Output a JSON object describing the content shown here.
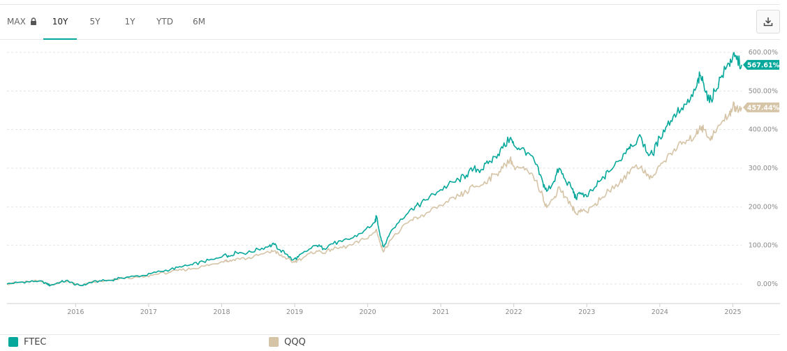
{
  "toolbar": {
    "ranges": [
      {
        "label": "MAX",
        "locked": true,
        "active": false
      },
      {
        "label": "10Y",
        "locked": false,
        "active": true
      },
      {
        "label": "5Y",
        "locked": false,
        "active": false
      },
      {
        "label": "1Y",
        "locked": false,
        "active": false
      },
      {
        "label": "YTD",
        "locked": false,
        "active": false
      },
      {
        "label": "6M",
        "locked": false,
        "active": false
      }
    ],
    "lock_icon": "lock-icon",
    "download_icon": "download-icon"
  },
  "chart_data": {
    "type": "line",
    "x_ticks": [
      "2016",
      "2017",
      "2018",
      "2019",
      "2020",
      "2021",
      "2022",
      "2023",
      "2024",
      "2025"
    ],
    "y_ticks": [
      "0.00%",
      "100.00%",
      "200.00%",
      "300.00%",
      "400.00%",
      "500.00%",
      "600.00%"
    ],
    "ylim": [
      -50,
      600
    ],
    "xlim": [
      2015.06,
      2025.12
    ],
    "grid": true,
    "legend_position": "bottom",
    "series": [
      {
        "name": "FTEC",
        "color": "#05a89b",
        "last_label": "567.61%",
        "points": [
          [
            2015.06,
            0
          ],
          [
            2015.2,
            4
          ],
          [
            2015.35,
            6
          ],
          [
            2015.5,
            8
          ],
          [
            2015.6,
            2
          ],
          [
            2015.65,
            -4
          ],
          [
            2015.8,
            6
          ],
          [
            2015.9,
            8
          ],
          [
            2016.0,
            -2
          ],
          [
            2016.1,
            -4
          ],
          [
            2016.2,
            4
          ],
          [
            2016.35,
            8
          ],
          [
            2016.5,
            10
          ],
          [
            2016.6,
            16
          ],
          [
            2016.8,
            20
          ],
          [
            2016.95,
            22
          ],
          [
            2017.1,
            30
          ],
          [
            2017.3,
            38
          ],
          [
            2017.45,
            44
          ],
          [
            2017.6,
            50
          ],
          [
            2017.75,
            58
          ],
          [
            2017.9,
            64
          ],
          [
            2018.05,
            78
          ],
          [
            2018.1,
            72
          ],
          [
            2018.2,
            82
          ],
          [
            2018.35,
            80
          ],
          [
            2018.5,
            90
          ],
          [
            2018.65,
            98
          ],
          [
            2018.72,
            102
          ],
          [
            2018.8,
            88
          ],
          [
            2018.9,
            76
          ],
          [
            2018.97,
            62
          ],
          [
            2019.05,
            70
          ],
          [
            2019.15,
            84
          ],
          [
            2019.3,
            100
          ],
          [
            2019.4,
            92
          ],
          [
            2019.5,
            104
          ],
          [
            2019.65,
            110
          ],
          [
            2019.8,
            120
          ],
          [
            2019.95,
            138
          ],
          [
            2020.1,
            160
          ],
          [
            2020.12,
            176
          ],
          [
            2020.18,
            120
          ],
          [
            2020.22,
            96
          ],
          [
            2020.3,
            130
          ],
          [
            2020.45,
            168
          ],
          [
            2020.6,
            196
          ],
          [
            2020.7,
            204
          ],
          [
            2020.8,
            218
          ],
          [
            2020.95,
            238
          ],
          [
            2021.1,
            256
          ],
          [
            2021.25,
            270
          ],
          [
            2021.35,
            282
          ],
          [
            2021.45,
            298
          ],
          [
            2021.55,
            296
          ],
          [
            2021.65,
            312
          ],
          [
            2021.75,
            330
          ],
          [
            2021.85,
            352
          ],
          [
            2021.95,
            378
          ],
          [
            2022.0,
            360
          ],
          [
            2022.1,
            350
          ],
          [
            2022.2,
            340
          ],
          [
            2022.3,
            310
          ],
          [
            2022.4,
            262
          ],
          [
            2022.45,
            240
          ],
          [
            2022.55,
            266
          ],
          [
            2022.62,
            300
          ],
          [
            2022.7,
            272
          ],
          [
            2022.8,
            246
          ],
          [
            2022.85,
            222
          ],
          [
            2022.92,
            236
          ],
          [
            2023.0,
            226
          ],
          [
            2023.1,
            248
          ],
          [
            2023.2,
            270
          ],
          [
            2023.3,
            290
          ],
          [
            2023.45,
            320
          ],
          [
            2023.55,
            350
          ],
          [
            2023.6,
            362
          ],
          [
            2023.75,
            378
          ],
          [
            2023.82,
            340
          ],
          [
            2023.9,
            336
          ],
          [
            2024.0,
            380
          ],
          [
            2024.1,
            410
          ],
          [
            2024.2,
            440
          ],
          [
            2024.3,
            456
          ],
          [
            2024.4,
            470
          ],
          [
            2024.5,
            510
          ],
          [
            2024.55,
            540
          ],
          [
            2024.6,
            520
          ],
          [
            2024.68,
            470
          ],
          [
            2024.75,
            500
          ],
          [
            2024.85,
            540
          ],
          [
            2024.95,
            570
          ],
          [
            2025.0,
            590
          ],
          [
            2025.05,
            582
          ],
          [
            2025.12,
            567.61
          ]
        ]
      },
      {
        "name": "QQQ",
        "color": "#d6c4a7",
        "last_label": "457.44%",
        "points": [
          [
            2015.06,
            0
          ],
          [
            2015.2,
            4
          ],
          [
            2015.35,
            6
          ],
          [
            2015.5,
            8
          ],
          [
            2015.6,
            2
          ],
          [
            2015.65,
            -3
          ],
          [
            2015.8,
            5
          ],
          [
            2015.9,
            7
          ],
          [
            2016.0,
            -2
          ],
          [
            2016.1,
            -3
          ],
          [
            2016.2,
            4
          ],
          [
            2016.35,
            7
          ],
          [
            2016.5,
            9
          ],
          [
            2016.6,
            14
          ],
          [
            2016.8,
            17
          ],
          [
            2016.95,
            19
          ],
          [
            2017.1,
            25
          ],
          [
            2017.3,
            31
          ],
          [
            2017.45,
            36
          ],
          [
            2017.6,
            40
          ],
          [
            2017.75,
            46
          ],
          [
            2017.9,
            52
          ],
          [
            2018.05,
            62
          ],
          [
            2018.1,
            58
          ],
          [
            2018.2,
            66
          ],
          [
            2018.35,
            66
          ],
          [
            2018.5,
            74
          ],
          [
            2018.65,
            82
          ],
          [
            2018.72,
            86
          ],
          [
            2018.8,
            74
          ],
          [
            2018.9,
            66
          ],
          [
            2018.97,
            56
          ],
          [
            2019.05,
            62
          ],
          [
            2019.15,
            72
          ],
          [
            2019.3,
            86
          ],
          [
            2019.4,
            80
          ],
          [
            2019.5,
            90
          ],
          [
            2019.65,
            94
          ],
          [
            2019.8,
            102
          ],
          [
            2019.95,
            116
          ],
          [
            2020.1,
            134
          ],
          [
            2020.12,
            142
          ],
          [
            2020.18,
            100
          ],
          [
            2020.22,
            84
          ],
          [
            2020.3,
            112
          ],
          [
            2020.45,
            140
          ],
          [
            2020.6,
            166
          ],
          [
            2020.7,
            172
          ],
          [
            2020.8,
            184
          ],
          [
            2020.95,
            196
          ],
          [
            2021.1,
            212
          ],
          [
            2021.25,
            228
          ],
          [
            2021.35,
            238
          ],
          [
            2021.45,
            252
          ],
          [
            2021.55,
            256
          ],
          [
            2021.65,
            270
          ],
          [
            2021.75,
            284
          ],
          [
            2021.85,
            300
          ],
          [
            2021.95,
            324
          ],
          [
            2022.0,
            306
          ],
          [
            2022.1,
            300
          ],
          [
            2022.2,
            290
          ],
          [
            2022.3,
            268
          ],
          [
            2022.4,
            226
          ],
          [
            2022.45,
            198
          ],
          [
            2022.55,
            222
          ],
          [
            2022.62,
            252
          ],
          [
            2022.7,
            226
          ],
          [
            2022.8,
            200
          ],
          [
            2022.85,
            182
          ],
          [
            2022.92,
            194
          ],
          [
            2023.0,
            186
          ],
          [
            2023.1,
            204
          ],
          [
            2023.2,
            222
          ],
          [
            2023.3,
            242
          ],
          [
            2023.45,
            262
          ],
          [
            2023.55,
            284
          ],
          [
            2023.6,
            296
          ],
          [
            2023.75,
            306
          ],
          [
            2023.82,
            280
          ],
          [
            2023.9,
            276
          ],
          [
            2024.0,
            306
          ],
          [
            2024.1,
            330
          ],
          [
            2024.2,
            350
          ],
          [
            2024.3,
            362
          ],
          [
            2024.4,
            372
          ],
          [
            2024.5,
            390
          ],
          [
            2024.55,
            410
          ],
          [
            2024.6,
            400
          ],
          [
            2024.68,
            376
          ],
          [
            2024.75,
            392
          ],
          [
            2024.85,
            420
          ],
          [
            2024.95,
            440
          ],
          [
            2025.0,
            460
          ],
          [
            2025.05,
            456
          ],
          [
            2025.12,
            457.44
          ]
        ]
      }
    ]
  }
}
